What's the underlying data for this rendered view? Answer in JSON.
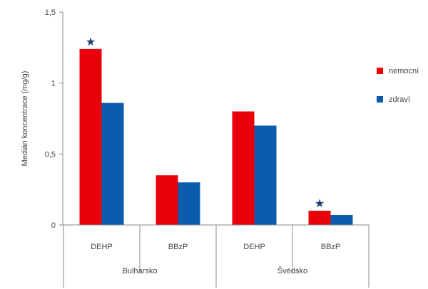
{
  "chart_data": {
    "type": "bar",
    "ylabel": "Medián koncentrace (mg/g)",
    "xlabel": "",
    "ylim": [
      0,
      1.5
    ],
    "yticks": [
      {
        "value": 0,
        "label": "0"
      },
      {
        "value": 0.5,
        "label": "0,5"
      },
      {
        "value": 1,
        "label": "1"
      },
      {
        "value": 1.5,
        "label": "1,5"
      }
    ],
    "groups": [
      {
        "label": "Bulharsko",
        "categories": [
          "DEHP",
          "BBzP"
        ]
      },
      {
        "label": "Švédsko",
        "categories": [
          "DEHP",
          "BBzP"
        ]
      }
    ],
    "categories": [
      "DEHP",
      "BBzP",
      "DEHP",
      "BBzP"
    ],
    "series": [
      {
        "name": "nemocní",
        "color": "#e8000b",
        "values": [
          1.24,
          0.35,
          0.8,
          0.1
        ]
      },
      {
        "name": "zdraví",
        "color": "#0b5cad",
        "values": [
          0.86,
          0.3,
          0.7,
          0.07
        ]
      }
    ],
    "significance_markers": [
      {
        "category_index": 0,
        "series_index": 0,
        "symbol": "★"
      },
      {
        "category_index": 3,
        "series_index": 0,
        "symbol": "★"
      }
    ],
    "legend_position": "right",
    "grid": false,
    "axis_color": "#888888",
    "star_color": "#1a3d7c"
  }
}
